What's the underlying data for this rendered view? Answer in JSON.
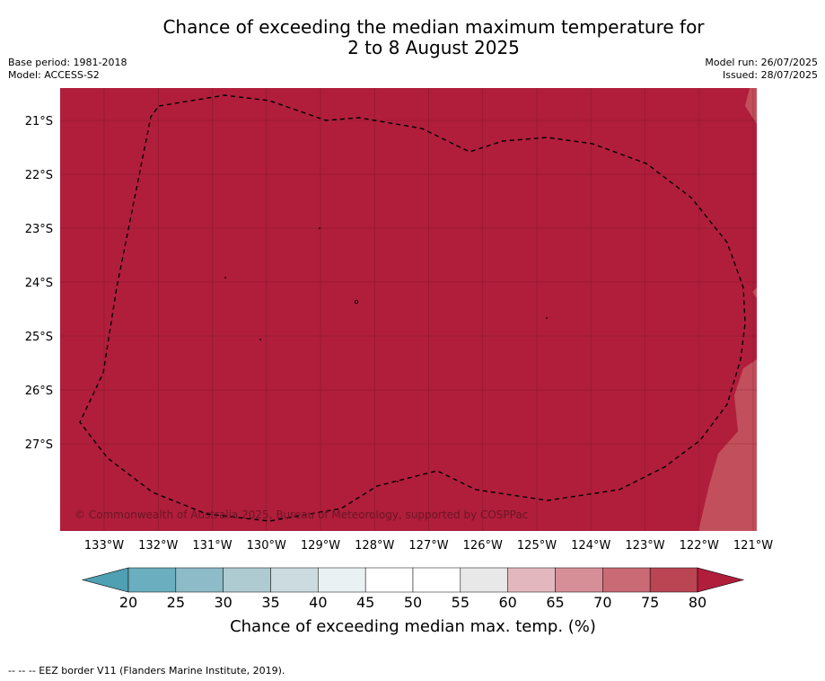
{
  "title_line1": "Chance of exceeding the median maximum temperature for",
  "title_line2": "2 to 8 August 2025",
  "base_period": "Base period: 1981-2018",
  "model": "Model: ACCESS-S2",
  "model_run": "Model run: 26/07/2025",
  "issued": "Issued: 28/07/2025",
  "copyright": "© Commonwealth of Australia 2025, Bureau of Meteorology, supported by COSPPac",
  "lat_ticks": [
    "21°S",
    "22°S",
    "23°S",
    "24°S",
    "25°S",
    "26°S",
    "27°S"
  ],
  "lon_ticks": [
    "133°W",
    "132°W",
    "131°W",
    "130°W",
    "129°W",
    "128°W",
    "127°W",
    "126°W",
    "125°W",
    "124°W",
    "123°W",
    "122°W",
    "121°W"
  ],
  "colorbar": {
    "ticks": [
      "20",
      "25",
      "30",
      "35",
      "40",
      "45",
      "50",
      "55",
      "60",
      "65",
      "70",
      "75",
      "80"
    ],
    "colors": [
      "#6aaebf",
      "#8dbbc7",
      "#adcbd0",
      "#cbdbdf",
      "#eaf1f3",
      "#ffffff",
      "#ffffff",
      "#e8e8e8",
      "#e2b8be",
      "#d78f97",
      "#c96a75",
      "#bb4553"
    ],
    "under_color": "#4fa0b2",
    "over_color": "#b01e3b",
    "label": "Chance of exceeding median max. temp. (%)"
  },
  "map_colors": {
    "main": "#b01e3b",
    "east_shade": "#c2505c"
  },
  "footnote": "--  --  -- EEZ border V11 (Flanders Marine Institute, 2019)."
}
